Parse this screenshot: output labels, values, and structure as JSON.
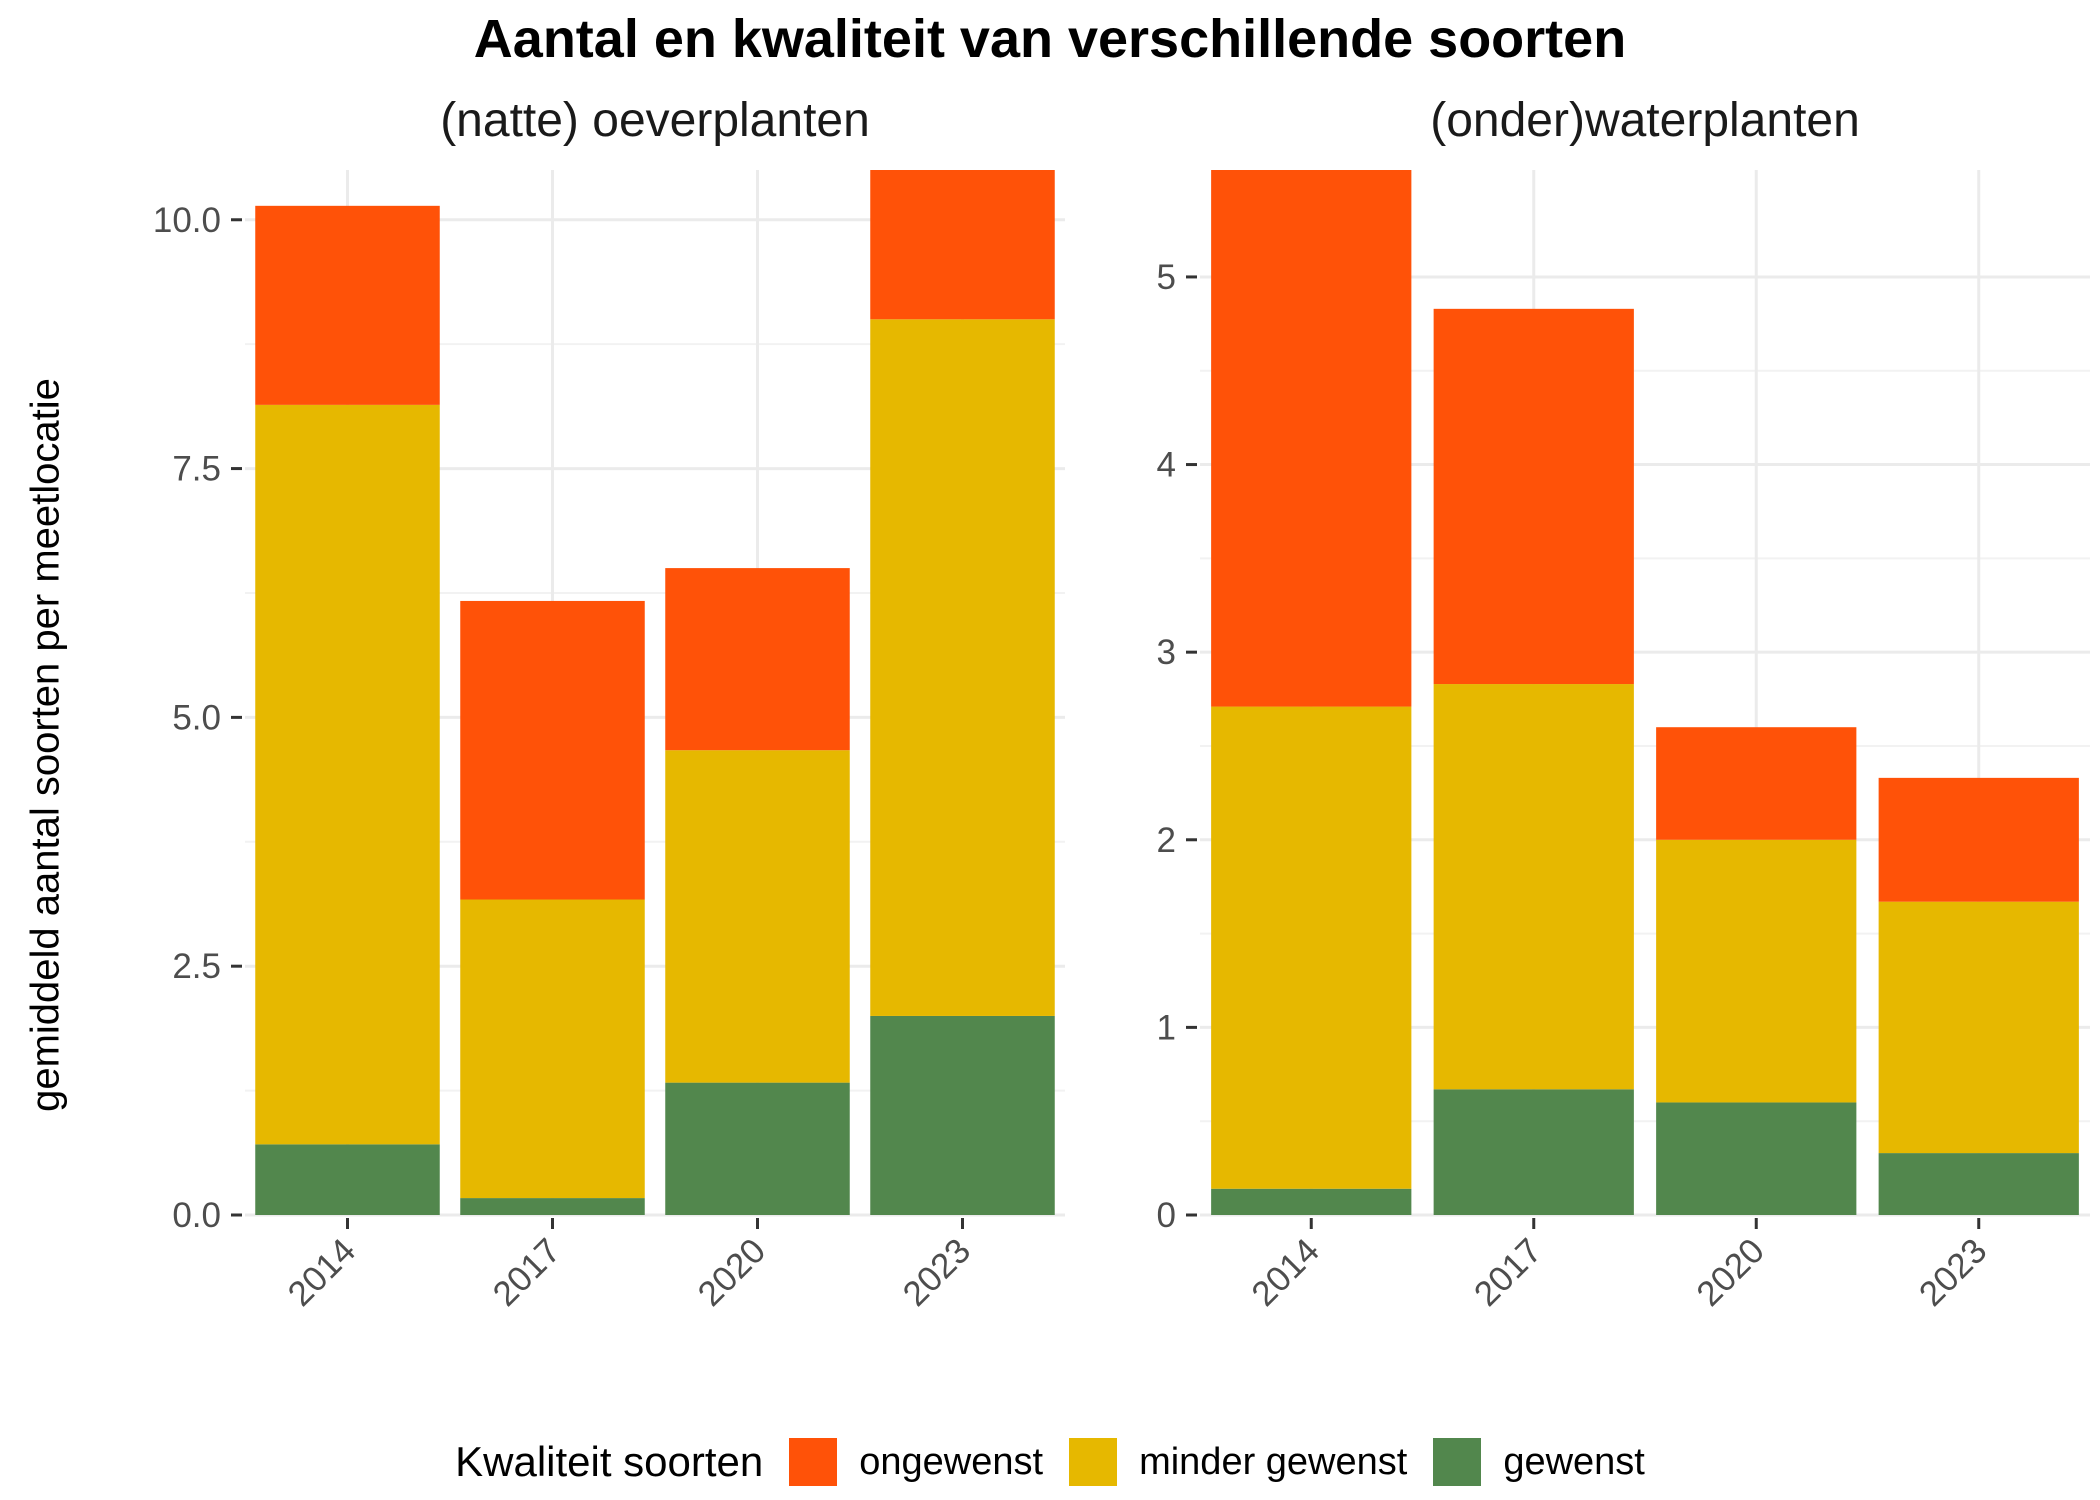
{
  "chart_data": {
    "type": "bar",
    "stacked": true,
    "title": "Aantal en kwaliteit van verschillende soorten",
    "ylabel": "gemiddeld aantal soorten per meetlocatie",
    "legend": {
      "title": "Kwaliteit soorten",
      "placement": "bottom",
      "items": [
        {
          "name": "ongewenst",
          "color": "#FF5208"
        },
        {
          "name": "minder gewenst",
          "color": "#E6B800"
        },
        {
          "name": "gewenst",
          "color": "#52874D"
        }
      ]
    },
    "panels": [
      {
        "title": "(natte) oeverplanten",
        "categories": [
          "2014",
          "2017",
          "2020",
          "2023"
        ],
        "ylim": [
          0,
          10.5
        ],
        "yticks": [
          0,
          2.5,
          5,
          7.5,
          10
        ],
        "yticklabels": [
          "0.0",
          "2.5",
          "5.0",
          "7.5",
          "10.0"
        ],
        "series": [
          {
            "name": "gewenst",
            "values": [
              0.71,
              0.17,
              1.33,
              2.0
            ]
          },
          {
            "name": "minder gewenst",
            "values": [
              7.43,
              3.0,
              3.34,
              7.0
            ]
          },
          {
            "name": "ongewenst",
            "values": [
              2.0,
              3.0,
              1.83,
              1.5
            ]
          }
        ]
      },
      {
        "title": "(onder)waterplanten",
        "categories": [
          "2014",
          "2017",
          "2020",
          "2023"
        ],
        "ylim": [
          0,
          5.57
        ],
        "yticks": [
          0,
          1,
          2,
          3,
          4,
          5
        ],
        "yticklabels": [
          "0",
          "1",
          "2",
          "3",
          "4",
          "5"
        ],
        "series": [
          {
            "name": "gewenst",
            "values": [
              0.14,
              0.67,
              0.6,
              0.33
            ]
          },
          {
            "name": "minder gewenst",
            "values": [
              2.57,
              2.16,
              1.4,
              1.34
            ]
          },
          {
            "name": "ongewenst",
            "values": [
              2.86,
              2.0,
              0.6,
              0.66
            ]
          }
        ]
      }
    ]
  }
}
